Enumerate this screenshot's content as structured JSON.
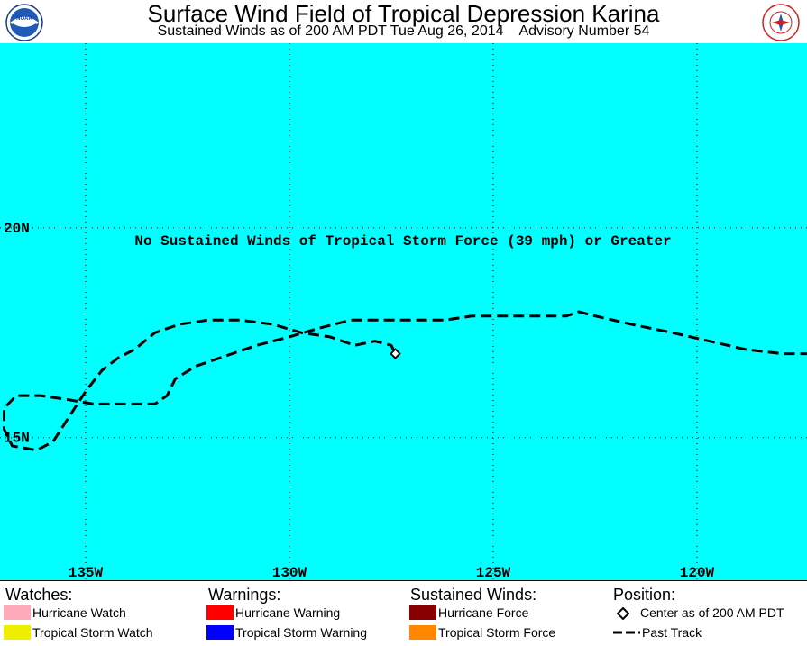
{
  "header": {
    "title": "Surface Wind Field of Tropical Depression Karina",
    "subtitle": "Sustained Winds as of 200 AM PDT Tue Aug 26, 2014    Advisory Number 54",
    "left_logo_text": "NOAA",
    "right_logo_text": "NATIONAL WEATHER SERVICE"
  },
  "map": {
    "background_color": "#00ffff",
    "message": "No Sustained Winds of Tropical Storm Force (39 mph) or Greater",
    "longitude_labels": [
      "135W",
      "130W",
      "125W",
      "120W"
    ],
    "latitude_labels": [
      "20N",
      "15N"
    ],
    "longitude_ticks": [
      -135,
      -130,
      -125,
      -120
    ],
    "latitude_ticks": [
      20,
      15
    ],
    "lon_range": [
      -137.1,
      -117.3
    ],
    "lat_range": [
      11.6,
      24.4
    ],
    "center": {
      "lon": -127.4,
      "lat": 17.0
    },
    "past_track": [
      [
        -117.2,
        17.0
      ],
      [
        -117.9,
        17.0
      ],
      [
        -118.8,
        17.1
      ],
      [
        -119.7,
        17.3
      ],
      [
        -120.6,
        17.5
      ],
      [
        -121.6,
        17.7
      ],
      [
        -122.5,
        17.9
      ],
      [
        -122.9,
        18.0
      ],
      [
        -123.2,
        17.9
      ],
      [
        -123.9,
        17.9
      ],
      [
        -124.7,
        17.9
      ],
      [
        -125.5,
        17.9
      ],
      [
        -126.2,
        17.8
      ],
      [
        -127.0,
        17.8
      ],
      [
        -127.8,
        17.8
      ],
      [
        -128.5,
        17.8
      ],
      [
        -129.3,
        17.6
      ],
      [
        -130.0,
        17.4
      ],
      [
        -130.8,
        17.2
      ],
      [
        -131.7,
        16.9
      ],
      [
        -132.3,
        16.7
      ],
      [
        -132.8,
        16.4
      ],
      [
        -133.0,
        16.0
      ],
      [
        -133.3,
        15.8
      ],
      [
        -134.0,
        15.8
      ],
      [
        -134.8,
        15.8
      ],
      [
        -135.4,
        15.9
      ],
      [
        -136.1,
        16.0
      ],
      [
        -136.7,
        16.0
      ],
      [
        -137.0,
        15.7
      ],
      [
        -137.0,
        15.2
      ],
      [
        -136.8,
        14.8
      ],
      [
        -136.2,
        14.7
      ],
      [
        -135.8,
        14.9
      ],
      [
        -135.4,
        15.5
      ],
      [
        -135.0,
        16.1
      ],
      [
        -134.6,
        16.6
      ],
      [
        -134.2,
        16.9
      ],
      [
        -133.8,
        17.1
      ],
      [
        -133.3,
        17.5
      ],
      [
        -132.7,
        17.7
      ],
      [
        -132.0,
        17.8
      ],
      [
        -131.2,
        17.8
      ],
      [
        -130.4,
        17.7
      ],
      [
        -129.7,
        17.5
      ],
      [
        -129.0,
        17.4
      ],
      [
        -128.4,
        17.2
      ],
      [
        -127.9,
        17.3
      ],
      [
        -127.5,
        17.2
      ],
      [
        -127.4,
        17.0
      ]
    ]
  },
  "legend": {
    "watches_heading": "Watches:",
    "warnings_heading": "Warnings:",
    "winds_heading": "Sustained Winds:",
    "position_heading": "Position:",
    "hurricane_watch": {
      "label": "Hurricane Watch",
      "color": "#ffaabb"
    },
    "tropical_storm_watch": {
      "label": "Tropical Storm Watch",
      "color": "#eeee00"
    },
    "hurricane_warning": {
      "label": "Hurricane Warning",
      "color": "#ff0000"
    },
    "tropical_storm_warning": {
      "label": "Tropical Storm Warning",
      "color": "#0000ff"
    },
    "hurricane_force": {
      "label": "Hurricane Force",
      "color": "#880000"
    },
    "tropical_storm_force": {
      "label": "Tropical Storm Force",
      "color": "#ff8800"
    },
    "center_label": "Center as of 200 AM PDT",
    "past_track_label": "Past Track"
  }
}
